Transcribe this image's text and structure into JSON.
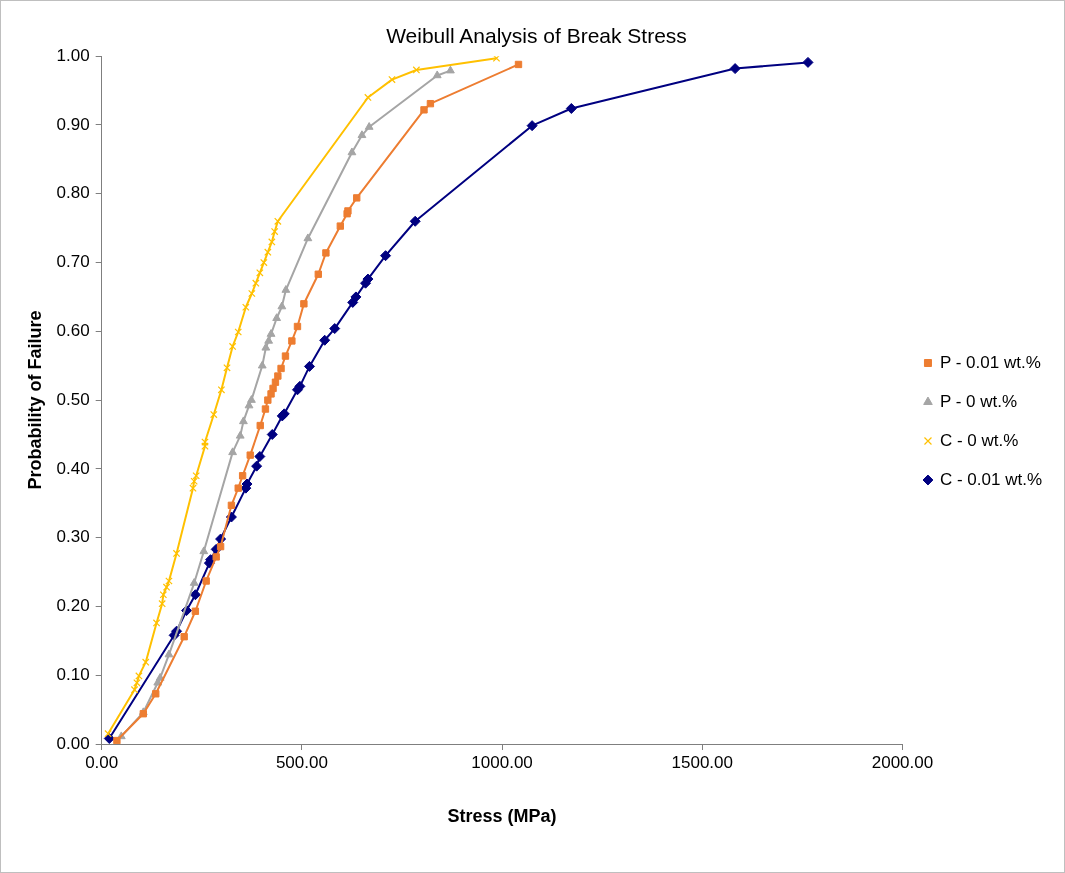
{
  "chart_data": {
    "type": "line",
    "title": "Weibull Analysis of Break Stress",
    "xlabel": "Stress (MPa)",
    "ylabel": "Probability of Failure",
    "xlim": [
      0,
      2000
    ],
    "xticks": [
      {
        "value": 0,
        "label": "0.00"
      },
      {
        "value": 500,
        "label": "500.00"
      },
      {
        "value": 1000,
        "label": "1000.00"
      },
      {
        "value": 1500,
        "label": "1500.00"
      },
      {
        "value": 2000,
        "label": "2000.00"
      }
    ],
    "ylim": [
      0,
      1
    ],
    "yticks": [
      {
        "value": 0,
        "label": "0.00"
      },
      {
        "value": 0.1,
        "label": "0.10"
      },
      {
        "value": 0.2,
        "label": "0.20"
      },
      {
        "value": 0.3,
        "label": "0.30"
      },
      {
        "value": 0.4,
        "label": "0.40"
      },
      {
        "value": 0.5,
        "label": "0.50"
      },
      {
        "value": 0.6,
        "label": "0.60"
      },
      {
        "value": 0.7,
        "label": "0.70"
      },
      {
        "value": 0.8,
        "label": "0.80"
      },
      {
        "value": 0.9,
        "label": "0.90"
      },
      {
        "value": 1,
        "label": "1.00"
      }
    ],
    "grid": false,
    "legend": "right",
    "line_style": "solid",
    "series": [
      {
        "name": "P - 0.01 wt.%",
        "color": "#ed7d31",
        "marker": "square",
        "x": [
          38,
          104,
          135,
          206,
          234,
          261,
          286,
          297,
          324,
          341,
          352,
          371,
          396,
          409,
          415,
          423,
          428,
          434,
          440,
          448,
          459,
          475,
          489,
          505,
          541,
          560,
          596,
          613,
          615,
          637,
          805,
          821,
          1041
        ],
        "values": [
          0.005,
          0.044,
          0.073,
          0.156,
          0.193,
          0.237,
          0.272,
          0.287,
          0.347,
          0.372,
          0.39,
          0.42,
          0.463,
          0.487,
          0.5,
          0.509,
          0.517,
          0.526,
          0.535,
          0.546,
          0.564,
          0.586,
          0.607,
          0.64,
          0.683,
          0.714,
          0.753,
          0.771,
          0.775,
          0.794,
          0.922,
          0.931,
          0.988
        ]
      },
      {
        "name": "P - 0 wt.%",
        "color": "#a5a5a5",
        "marker": "triangle",
        "x": [
          49,
          104,
          140,
          146,
          168,
          231,
          255,
          327,
          346,
          354,
          368,
          374,
          401,
          410,
          417,
          423,
          437,
          450,
          460,
          515,
          625,
          650,
          668,
          838,
          871
        ],
        "values": [
          0.011,
          0.046,
          0.089,
          0.096,
          0.13,
          0.234,
          0.28,
          0.424,
          0.448,
          0.469,
          0.492,
          0.5,
          0.55,
          0.576,
          0.586,
          0.596,
          0.619,
          0.636,
          0.66,
          0.735,
          0.86,
          0.885,
          0.897,
          0.972,
          0.979
        ]
      },
      {
        "name": "C - 0 wt.%",
        "color": "#ffc000",
        "marker": "cross",
        "x": [
          16,
          82,
          88,
          93,
          110,
          137,
          151,
          154,
          162,
          168,
          187,
          228,
          231,
          236,
          258,
          258,
          280,
          299,
          313,
          327,
          341,
          360,
          375,
          385,
          395,
          405,
          415,
          425,
          432,
          440,
          665,
          725,
          786,
          986
        ],
        "values": [
          0.015,
          0.079,
          0.089,
          0.099,
          0.119,
          0.176,
          0.204,
          0.217,
          0.228,
          0.237,
          0.277,
          0.372,
          0.382,
          0.39,
          0.433,
          0.439,
          0.479,
          0.515,
          0.547,
          0.578,
          0.599,
          0.635,
          0.655,
          0.67,
          0.685,
          0.7,
          0.715,
          0.73,
          0.745,
          0.76,
          0.94,
          0.966,
          0.98,
          0.997
        ]
      },
      {
        "name": "C - 0.01 wt.%",
        "color": "#000080",
        "marker": "diamond",
        "x": [
          19,
          181,
          187,
          212,
          234,
          269,
          272,
          286,
          297,
          324,
          360,
          363,
          387,
          395,
          426,
          451,
          456,
          489,
          495,
          519,
          557,
          582,
          627,
          635,
          659,
          665,
          709,
          783,
          1075,
          1173,
          1582,
          1764
        ],
        "values": [
          0.008,
          0.158,
          0.164,
          0.194,
          0.217,
          0.263,
          0.268,
          0.283,
          0.298,
          0.33,
          0.372,
          0.378,
          0.404,
          0.418,
          0.45,
          0.477,
          0.48,
          0.515,
          0.52,
          0.549,
          0.587,
          0.604,
          0.642,
          0.65,
          0.67,
          0.676,
          0.71,
          0.76,
          0.899,
          0.924,
          0.982,
          0.991
        ]
      }
    ]
  }
}
